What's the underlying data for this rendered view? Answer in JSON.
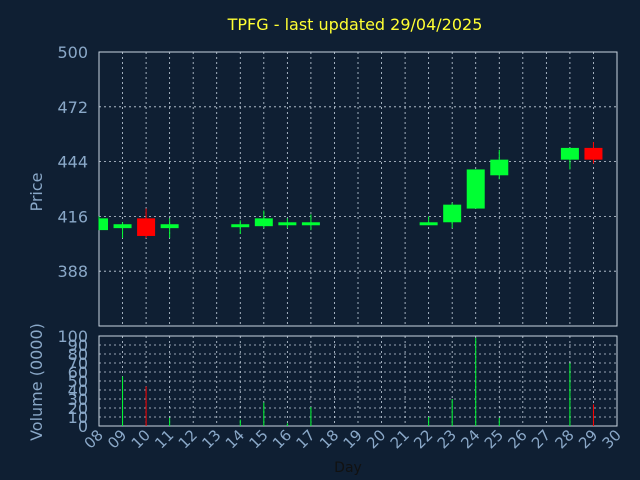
{
  "chart_data": {
    "type": "candlestick",
    "title": "TPFG - last updated 29/04/2025",
    "xlabel": "Day",
    "price_axis": {
      "label": "Price",
      "ylim": [
        360,
        500
      ],
      "ticks": [
        388,
        416,
        444,
        472,
        500
      ]
    },
    "volume_axis": {
      "label": "Volume (0000)",
      "ylim": [
        0,
        100
      ],
      "ticks": [
        0,
        10,
        20,
        30,
        40,
        50,
        60,
        70,
        80,
        90,
        100
      ]
    },
    "x_ticks": [
      "08",
      "09",
      "10",
      "11",
      "12",
      "13",
      "14",
      "15",
      "16",
      "17",
      "18",
      "19",
      "20",
      "21",
      "22",
      "23",
      "24",
      "25",
      "26",
      "27",
      "28",
      "29",
      "30"
    ],
    "grid": true,
    "colors": {
      "up": "#00ff33",
      "down": "#ff0000",
      "grid": "#c8d4e0",
      "title": "#ffff33",
      "text": "#8aa8c8",
      "background": "#0f1f33"
    },
    "candles": [
      {
        "day": 8,
        "open": 409,
        "high": 416,
        "low": 409,
        "close": 415,
        "volume": 0
      },
      {
        "day": 9,
        "open": 410,
        "high": 413,
        "low": 405,
        "close": 412,
        "volume": 55
      },
      {
        "day": 10,
        "open": 415,
        "high": 420,
        "low": 405,
        "close": 406,
        "volume": 44
      },
      {
        "day": 11,
        "open": 410,
        "high": 415,
        "low": 405,
        "close": 412,
        "volume": 9
      },
      {
        "day": 14,
        "open": 411,
        "high": 414,
        "low": 407,
        "close": 412,
        "volume": 7
      },
      {
        "day": 15,
        "open": 411,
        "high": 419,
        "low": 410,
        "close": 415,
        "volume": 26
      },
      {
        "day": 16,
        "open": 412,
        "high": 415,
        "low": 410,
        "close": 413,
        "volume": 3
      },
      {
        "day": 17,
        "open": 412,
        "high": 417,
        "low": 409,
        "close": 413,
        "volume": 21
      },
      {
        "day": 22,
        "open": 412,
        "high": 416,
        "low": 412,
        "close": 413,
        "volume": 10
      },
      {
        "day": 23,
        "open": 413,
        "high": 423,
        "low": 410,
        "close": 422,
        "volume": 30
      },
      {
        "day": 24,
        "open": 420,
        "high": 440,
        "low": 420,
        "close": 440,
        "volume": 98
      },
      {
        "day": 25,
        "open": 437,
        "high": 450,
        "low": 435,
        "close": 445,
        "volume": 9
      },
      {
        "day": 28,
        "open": 445,
        "high": 451,
        "low": 440,
        "close": 451,
        "volume": 70
      },
      {
        "day": 29,
        "open": 451,
        "high": 454,
        "low": 443,
        "close": 445,
        "volume": 24
      }
    ]
  }
}
